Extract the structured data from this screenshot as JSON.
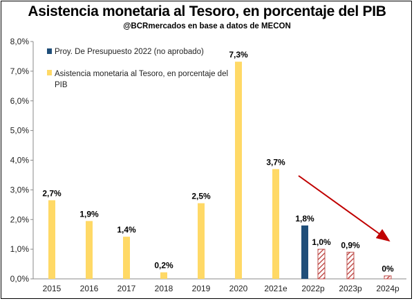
{
  "title": "Asistencia monetaria al Tesoro, en porcentaje del PIB",
  "subtitle": "@BCRmercados en base a datos de MECON",
  "legend": [
    {
      "label": "Proy. De Presupuesto 2022 (no aprobado)",
      "color": "#1F4E79"
    },
    {
      "label_line1": "Asistencia monetaria al Tesoro, en porcentaje del",
      "label_line2": "PIB",
      "color": "#FFD966"
    }
  ],
  "colors": {
    "yellow": "#FFD966",
    "navy": "#1F4E79",
    "hatch": "#C0504D",
    "arrow": "#C00000"
  },
  "chart_data": {
    "type": "bar",
    "title": "Asistencia monetaria al Tesoro, en porcentaje del PIB",
    "ylim": [
      0,
      8
    ],
    "yticks": [
      "0,0%",
      "1,0%",
      "2,0%",
      "3,0%",
      "4,0%",
      "5,0%",
      "6,0%",
      "7,0%",
      "8,0%"
    ],
    "grid": false,
    "legend_position": "top-left",
    "categories": [
      "2015",
      "2016",
      "2017",
      "2018",
      "2019",
      "2020",
      "2021e",
      "2022p",
      "2023p",
      "2024p"
    ],
    "series": [
      {
        "name": "Asistencia monetaria al Tesoro, en porcentaje del PIB",
        "style": "solid-yellow",
        "values": [
          2.65,
          1.95,
          1.42,
          0.22,
          2.55,
          7.32,
          3.7,
          null,
          null,
          null
        ],
        "labels": [
          "2,7%",
          "1,9%",
          "1,4%",
          "0,2%",
          "2,5%",
          "7,3%",
          "3,7%",
          "",
          "",
          ""
        ]
      },
      {
        "name": "Proy. De Presupuesto 2022 (no aprobado)",
        "style": "solid-navy",
        "values": [
          null,
          null,
          null,
          null,
          null,
          null,
          null,
          1.8,
          null,
          null
        ],
        "labels": [
          "",
          "",
          "",
          "",
          "",
          "",
          "",
          "1,8%",
          "",
          ""
        ]
      },
      {
        "style": "hatched",
        "values": [
          null,
          null,
          null,
          null,
          null,
          null,
          null,
          1.0,
          0.9,
          0.1
        ],
        "labels": [
          "",
          "",
          "",
          "",
          "",
          "",
          "",
          "1,0%",
          "0,9%",
          "0%"
        ]
      }
    ],
    "annotation": "downward-trend-arrow"
  }
}
